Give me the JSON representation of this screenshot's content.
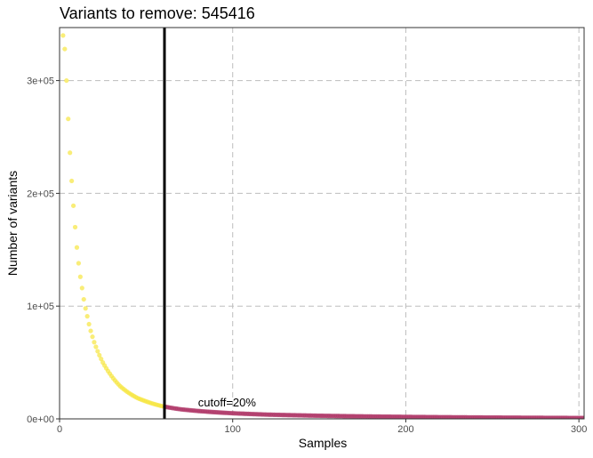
{
  "chart_data": {
    "type": "scatter",
    "title": "Variants to remove:  545416",
    "xlabel": "Samples",
    "ylabel": "Number of variants",
    "xlim": [
      0,
      303
    ],
    "ylim": [
      0,
      347000
    ],
    "x_ticks": [
      0,
      100,
      200,
      300
    ],
    "x_tick_labels": [
      "0",
      "100",
      "200",
      "300"
    ],
    "y_ticks": [
      0,
      100000,
      200000,
      300000
    ],
    "y_tick_labels": [
      "0e+00",
      "1e+05",
      "2e+05",
      "3e+05"
    ],
    "grid": true,
    "legend": "none",
    "cutoff": {
      "x": 60.6,
      "label": "cutoff=20%",
      "label_x": 80,
      "label_y": 11000
    },
    "colors": {
      "below_cutoff": "#f7e53f",
      "above_cutoff": "#b03a6a",
      "cutoff_line": "#000000"
    },
    "curve_points": [
      [
        1,
        360000
      ],
      [
        2,
        340000
      ],
      [
        3,
        328000
      ],
      [
        4,
        300000
      ],
      [
        5,
        266000
      ],
      [
        6,
        236000
      ],
      [
        7,
        211000
      ],
      [
        8,
        189000
      ],
      [
        9,
        170000
      ],
      [
        10,
        152000
      ],
      [
        11,
        138000
      ],
      [
        12,
        126000
      ],
      [
        13,
        116000
      ],
      [
        14,
        106000
      ],
      [
        15,
        98000
      ],
      [
        16,
        91000
      ],
      [
        17,
        84000
      ],
      [
        18,
        78000
      ],
      [
        20,
        68000
      ],
      [
        22,
        60000
      ],
      [
        25,
        50000
      ],
      [
        30,
        38000
      ],
      [
        35,
        29000
      ],
      [
        40,
        23000
      ],
      [
        45,
        18500
      ],
      [
        50,
        15500
      ],
      [
        55,
        13000
      ],
      [
        60,
        11000
      ],
      [
        70,
        8500
      ],
      [
        80,
        7000
      ],
      [
        100,
        5000
      ],
      [
        120,
        3800
      ],
      [
        150,
        2800
      ],
      [
        200,
        1800
      ],
      [
        250,
        1200
      ],
      [
        303,
        800
      ]
    ]
  }
}
